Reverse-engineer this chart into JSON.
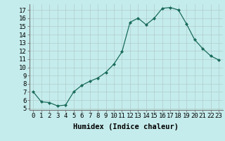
{
  "x": [
    0,
    1,
    2,
    3,
    4,
    5,
    6,
    7,
    8,
    9,
    10,
    11,
    12,
    13,
    14,
    15,
    16,
    17,
    18,
    19,
    20,
    21,
    22,
    23
  ],
  "y": [
    7.0,
    5.8,
    5.7,
    5.3,
    5.4,
    7.0,
    7.8,
    8.3,
    8.7,
    9.4,
    10.4,
    11.9,
    15.5,
    16.0,
    15.2,
    16.0,
    17.2,
    17.3,
    17.0,
    15.3,
    13.4,
    12.3,
    11.4,
    10.9
  ],
  "xlabel": "Humidex (Indice chaleur)",
  "xlim": [
    -0.5,
    23.5
  ],
  "ylim": [
    4.8,
    17.7
  ],
  "yticks": [
    5,
    6,
    7,
    8,
    9,
    10,
    11,
    12,
    13,
    14,
    15,
    16,
    17
  ],
  "bg_color": "#c5ecec",
  "line_color": "#1a6b5a",
  "grid_color": "#b0cccc",
  "tick_fontsize": 6.5,
  "label_fontsize": 7.5
}
